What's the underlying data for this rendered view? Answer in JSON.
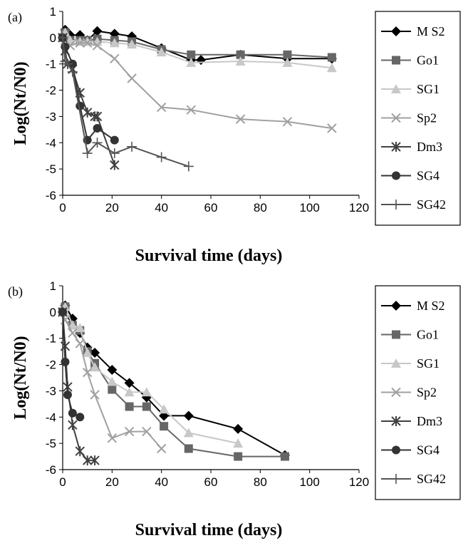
{
  "chart_data": [
    {
      "type": "line",
      "panel_label": "(a)",
      "xlabel": "Survival time (days)",
      "ylabel": "Log(Nt/N0)",
      "xlim": [
        0,
        120
      ],
      "ylim": [
        -6,
        1
      ],
      "xticks": [
        0,
        20,
        40,
        60,
        80,
        100,
        120
      ],
      "yticks": [
        1,
        0,
        -1,
        -2,
        -3,
        -4,
        -5,
        -6
      ],
      "grid": false,
      "legend_position": "right",
      "series": [
        {
          "name": "M S2",
          "marker": "diamond",
          "color": "#000000",
          "x": [
            0,
            1,
            3,
            7,
            10,
            14,
            21,
            28,
            40,
            52,
            56,
            72,
            91,
            109
          ],
          "y": [
            0,
            0.3,
            0.1,
            0.1,
            -0.1,
            0.25,
            0.15,
            0.05,
            -0.4,
            -0.85,
            -0.85,
            -0.65,
            -0.8,
            -0.8
          ]
        },
        {
          "name": "Go1",
          "marker": "square",
          "color": "#666666",
          "x": [
            0,
            1,
            3,
            7,
            10,
            14,
            21,
            28,
            40,
            52,
            72,
            91,
            109
          ],
          "y": [
            0,
            0.2,
            -0.1,
            -0.1,
            -0.1,
            -0.05,
            -0.1,
            -0.15,
            -0.45,
            -0.65,
            -0.65,
            -0.65,
            -0.75
          ]
        },
        {
          "name": "SG1",
          "marker": "triangle",
          "color": "#c8c8c8",
          "x": [
            0,
            1,
            3,
            7,
            10,
            14,
            21,
            28,
            40,
            52,
            72,
            91,
            109
          ],
          "y": [
            0,
            0.2,
            -0.1,
            -0.15,
            -0.15,
            -0.15,
            -0.2,
            -0.25,
            -0.55,
            -0.95,
            -0.9,
            -0.95,
            -1.15
          ]
        },
        {
          "name": "Sp2",
          "marker": "x",
          "color": "#a0a0a0",
          "x": [
            0,
            1,
            3,
            7,
            10,
            14,
            21,
            28,
            40,
            52,
            72,
            91,
            109
          ],
          "y": [
            0,
            -0.1,
            -0.3,
            -0.2,
            -0.2,
            -0.3,
            -0.8,
            -1.55,
            -2.65,
            -2.75,
            -3.1,
            -3.2,
            -3.45
          ]
        },
        {
          "name": "Dm3",
          "marker": "asterisk",
          "color": "#404040",
          "x": [
            0,
            1,
            2,
            4,
            7,
            10,
            13,
            14,
            21
          ],
          "y": [
            0,
            -0.5,
            -1.0,
            -1.2,
            -2.1,
            -2.85,
            -3.0,
            -3.0,
            -4.85
          ]
        },
        {
          "name": "SG4",
          "marker": "circle",
          "color": "#333333",
          "x": [
            0,
            1,
            4,
            7,
            10,
            14,
            21
          ],
          "y": [
            0,
            -0.35,
            -1.0,
            -2.6,
            -3.9,
            -3.45,
            -3.9
          ]
        },
        {
          "name": "SG42",
          "marker": "plus",
          "color": "#555555",
          "x": [
            0,
            1,
            2,
            4,
            10,
            14,
            21,
            28,
            40,
            51
          ],
          "y": [
            0,
            -0.9,
            -1.0,
            -1.3,
            -4.4,
            -4.0,
            -4.4,
            -4.15,
            -4.55,
            -4.9
          ]
        }
      ]
    },
    {
      "type": "line",
      "panel_label": "(b)",
      "xlabel": "Survival time (days)",
      "ylabel": "Log(Nt/N0)",
      "xlim": [
        0,
        120
      ],
      "ylim": [
        -6,
        1
      ],
      "xticks": [
        0,
        20,
        40,
        60,
        80,
        100,
        120
      ],
      "yticks": [
        1,
        0,
        -1,
        -2,
        -3,
        -4,
        -5,
        -6
      ],
      "grid": false,
      "legend_position": "right",
      "series": [
        {
          "name": "M S2",
          "marker": "diamond",
          "color": "#000000",
          "x": [
            0,
            1,
            4,
            7,
            10,
            13,
            20,
            27,
            34,
            41,
            51,
            71,
            90
          ],
          "y": [
            0,
            0.25,
            -0.25,
            -0.8,
            -1.35,
            -1.55,
            -2.2,
            -2.7,
            -3.25,
            -3.95,
            -3.95,
            -4.45,
            -5.45
          ]
        },
        {
          "name": "Go1",
          "marker": "square",
          "color": "#666666",
          "x": [
            0,
            1,
            4,
            7,
            10,
            13,
            20,
            27,
            34,
            41,
            51,
            71,
            90
          ],
          "y": [
            0,
            0.2,
            -0.5,
            -0.7,
            -1.5,
            -1.95,
            -2.95,
            -3.6,
            -3.6,
            -4.35,
            -5.2,
            -5.5,
            -5.5
          ]
        },
        {
          "name": "SG1",
          "marker": "triangle",
          "color": "#c8c8c8",
          "x": [
            0,
            1,
            4,
            7,
            10,
            13,
            20,
            27,
            34,
            41,
            51,
            71
          ],
          "y": [
            0,
            0.2,
            -0.5,
            -0.6,
            -1.55,
            -2.1,
            -2.65,
            -3.05,
            -3.05,
            -3.7,
            -4.6,
            -5.0
          ]
        },
        {
          "name": "Sp2",
          "marker": "x",
          "color": "#a0a0a0",
          "x": [
            0,
            1,
            4,
            7,
            10,
            13,
            20,
            27,
            34,
            40
          ],
          "y": [
            0,
            -0.3,
            -0.8,
            -1.2,
            -2.3,
            -3.15,
            -4.8,
            -4.55,
            -4.55,
            -5.2
          ]
        },
        {
          "name": "Dm3",
          "marker": "asterisk",
          "color": "#404040",
          "x": [
            0,
            1,
            2,
            4,
            7,
            10,
            13
          ],
          "y": [
            0,
            -1.3,
            -2.85,
            -4.3,
            -5.3,
            -5.65,
            -5.65
          ]
        },
        {
          "name": "SG4",
          "marker": "circle",
          "color": "#333333",
          "x": [
            0,
            1,
            2,
            4,
            7
          ],
          "y": [
            0,
            -1.9,
            -3.15,
            -3.85,
            -4.0
          ]
        },
        {
          "name": "SG42",
          "marker": "plus",
          "color": "#555555",
          "x": [],
          "y": []
        }
      ]
    }
  ]
}
